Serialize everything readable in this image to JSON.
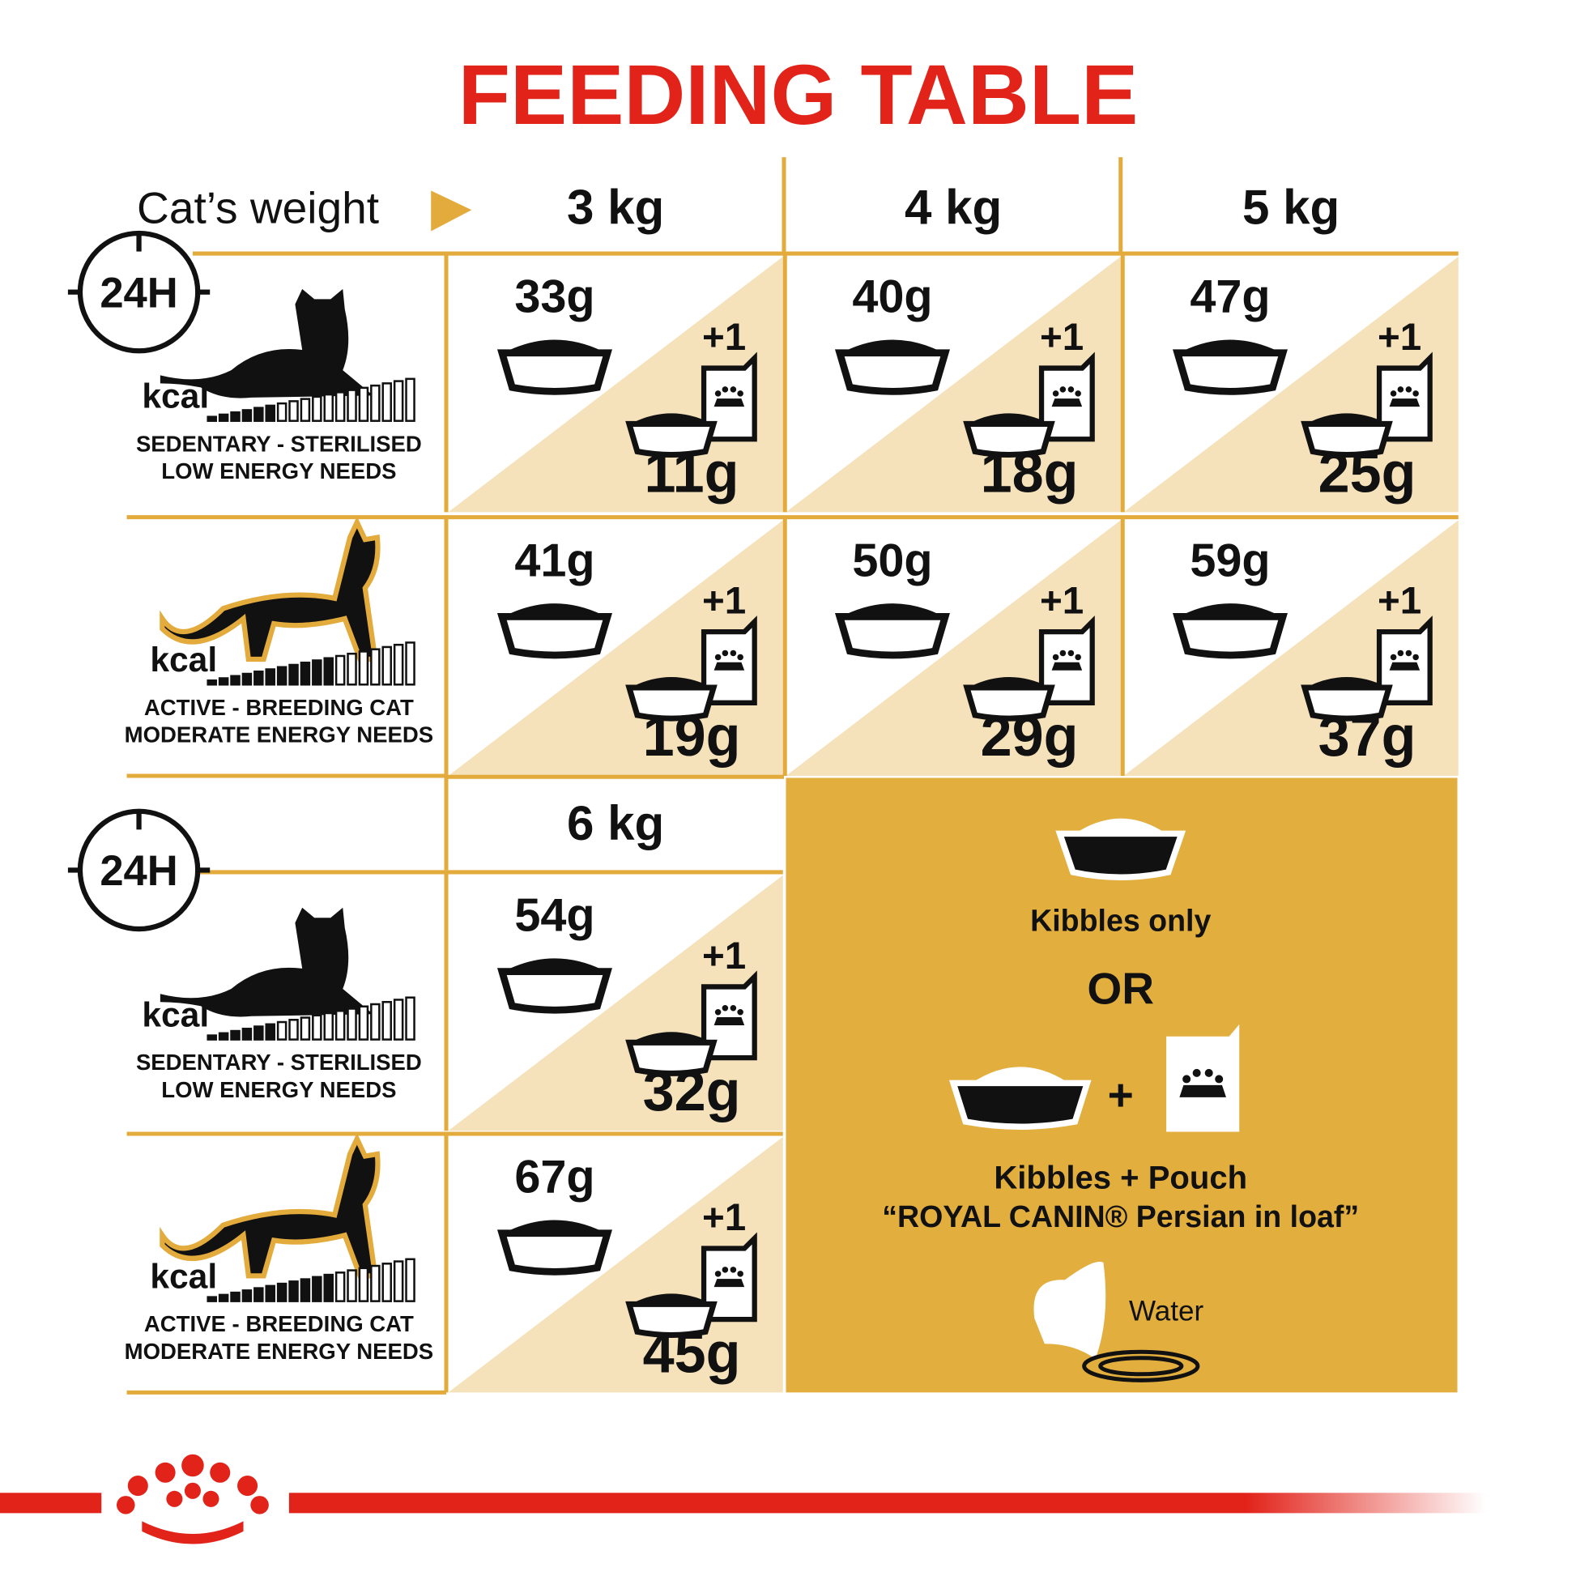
{
  "title": "FEEDING TABLE",
  "sections": [
    {
      "label": "Cat’s weight",
      "weights": [
        "3 kg",
        "4 kg",
        "5 kg"
      ],
      "rows": [
        {
          "badge": "24H",
          "kcal": "kcal",
          "level": "SEDENTARY - STERILISED",
          "needs": "LOW ENERGY NEEDS",
          "cells": [
            {
              "kibbles": "33g",
              "pouch": "+1",
              "mixed": "11g"
            },
            {
              "kibbles": "40g",
              "pouch": "+1",
              "mixed": "18g"
            },
            {
              "kibbles": "47g",
              "pouch": "+1",
              "mixed": "25g"
            }
          ]
        },
        {
          "kcal": "kcal",
          "level": "ACTIVE - BREEDING CAT",
          "needs": "MODERATE ENERGY NEEDS",
          "cells": [
            {
              "kibbles": "41g",
              "pouch": "+1",
              "mixed": "19g"
            },
            {
              "kibbles": "50g",
              "pouch": "+1",
              "mixed": "29g"
            },
            {
              "kibbles": "59g",
              "pouch": "+1",
              "mixed": "37g"
            }
          ]
        }
      ]
    },
    {
      "weights": [
        "6 kg"
      ],
      "rows": [
        {
          "badge": "24H",
          "kcal": "kcal",
          "level": "SEDENTARY - STERILISED",
          "needs": "LOW ENERGY NEEDS",
          "cells": [
            {
              "kibbles": "54g",
              "pouch": "+1",
              "mixed": "32g"
            }
          ]
        },
        {
          "kcal": "kcal",
          "level": "ACTIVE - BREEDING CAT",
          "needs": "MODERATE ENERGY NEEDS",
          "cells": [
            {
              "kibbles": "67g",
              "pouch": "+1",
              "mixed": "45g"
            }
          ]
        }
      ]
    }
  ],
  "legend": {
    "kibbles_only": "Kibbles only",
    "or": "OR",
    "plus": "+",
    "kibbles_pouch": "Kibbles + Pouch",
    "product": "“ROYAL CANIN® Persian in loaf”",
    "water": "Water"
  }
}
